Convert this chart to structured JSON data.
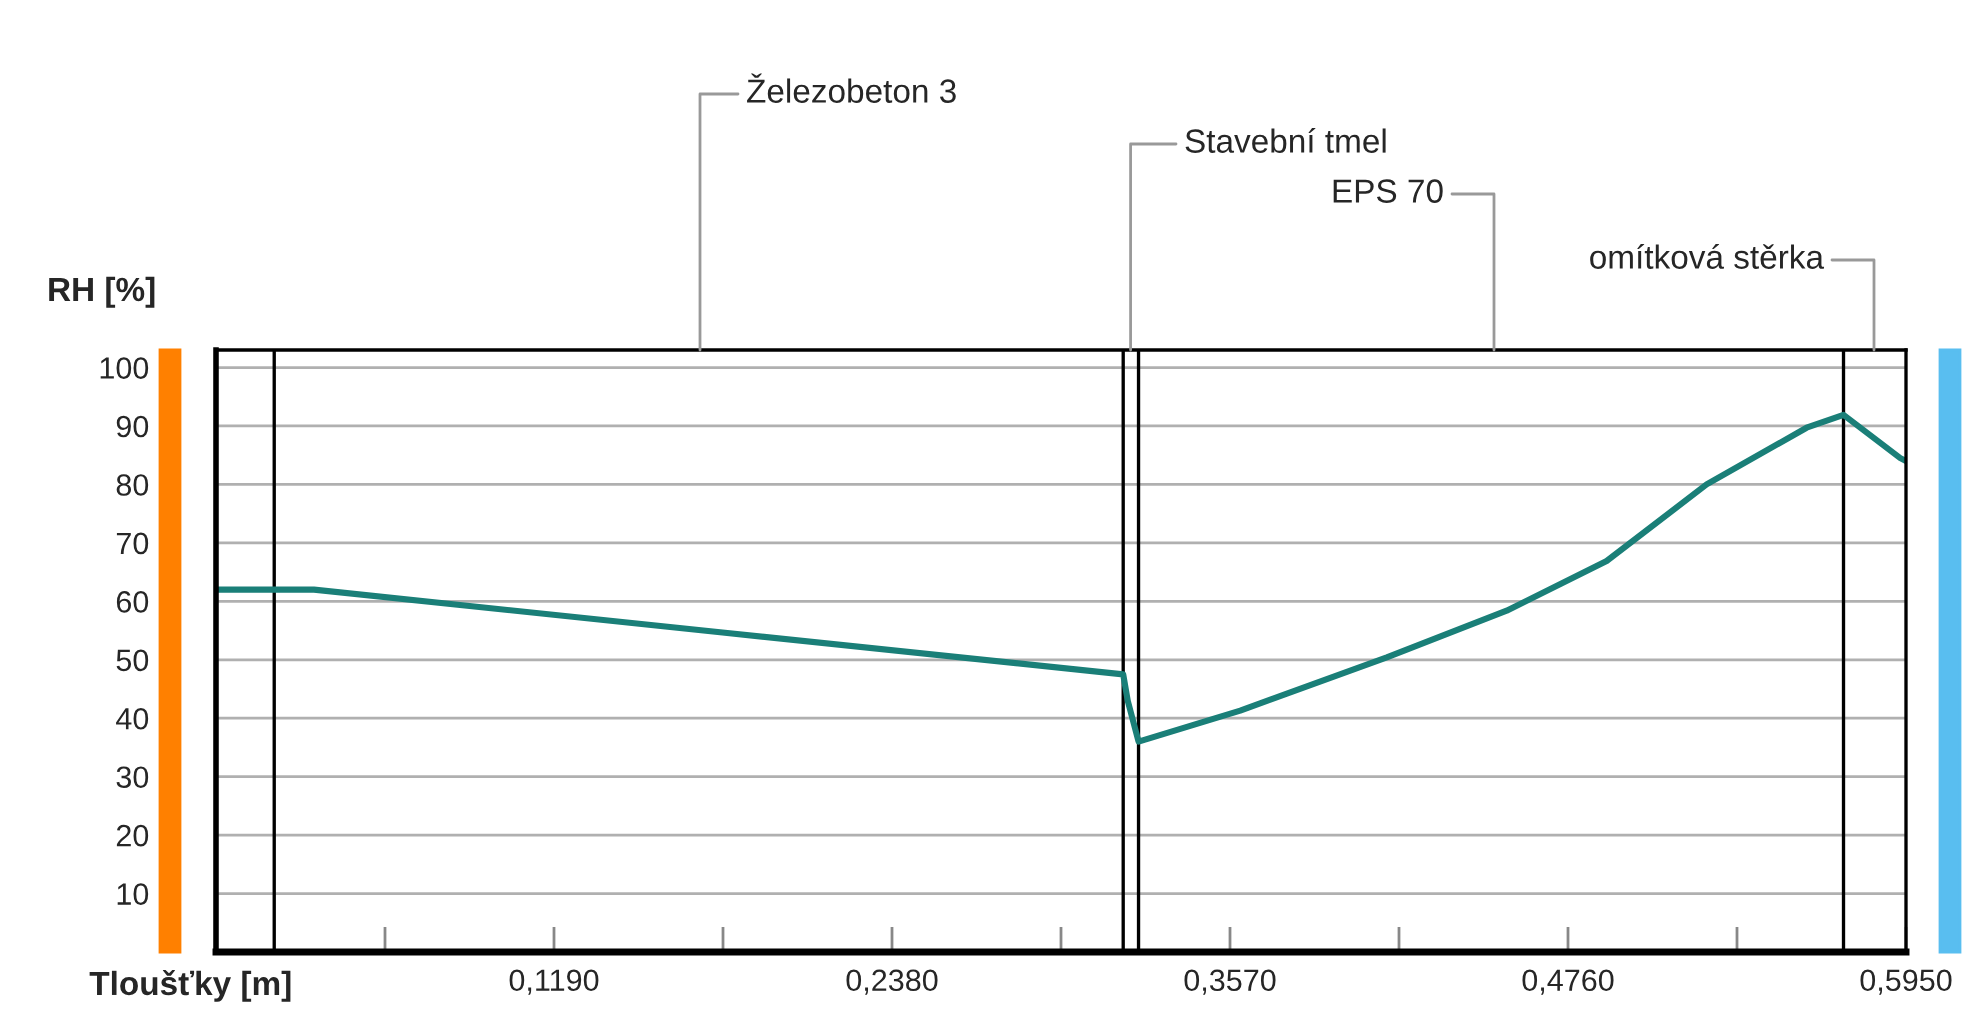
{
  "chart_data": {
    "type": "line",
    "xlabel": "Tloušťky [m]",
    "ylabel": "RH [%]",
    "x": [
      0,
      0.0205,
      0.0345,
      0.1775,
      0.3194,
      0.321,
      0.3248,
      0.3606,
      0.4122,
      0.4544,
      0.4896,
      0.5248,
      0.56,
      0.573,
      0.593,
      0.595
    ],
    "series": [
      {
        "color": "#1a7f78",
        "values": [
          62,
          62,
          62,
          54.7,
          47.5,
          43,
          36,
          41.3,
          50.4,
          58.4,
          66.9,
          80,
          89.7,
          91.9,
          84.5,
          84
        ]
      }
    ],
    "xlim": [
      0,
      0.595
    ],
    "ylim": [
      0,
      103
    ],
    "xticks": [
      {
        "value": 0.0595,
        "label": null
      },
      {
        "value": 0.119,
        "label": "0,1190"
      },
      {
        "value": 0.1785,
        "label": null
      },
      {
        "value": 0.238,
        "label": "0,2380"
      },
      {
        "value": 0.2975,
        "label": null
      },
      {
        "value": 0.357,
        "label": "0,3570"
      },
      {
        "value": 0.4165,
        "label": null
      },
      {
        "value": 0.476,
        "label": "0,4760"
      },
      {
        "value": 0.5355,
        "label": null
      },
      {
        "value": 0.595,
        "label": "0,5950"
      }
    ],
    "yticks": [
      10,
      20,
      30,
      40,
      50,
      60,
      70,
      80,
      90,
      100
    ],
    "grid": "y",
    "marker": "none",
    "line_style": "solid",
    "legend": false,
    "ref_lines": [
      {
        "axis": "x",
        "value": 0.0205,
        "color": "#000000"
      },
      {
        "axis": "x",
        "value": 0.3194,
        "color": "#000000"
      },
      {
        "axis": "x",
        "value": 0.3248,
        "color": "#000000"
      },
      {
        "axis": "x",
        "value": 0.573,
        "color": "#000000"
      }
    ],
    "annotations": [
      "Železobeton 3",
      {
        "text": "Stavební tmel",
        "x": 0.322,
        "y": 103
      },
      "EPS 70",
      "omítková stěrka"
    ]
  }
}
